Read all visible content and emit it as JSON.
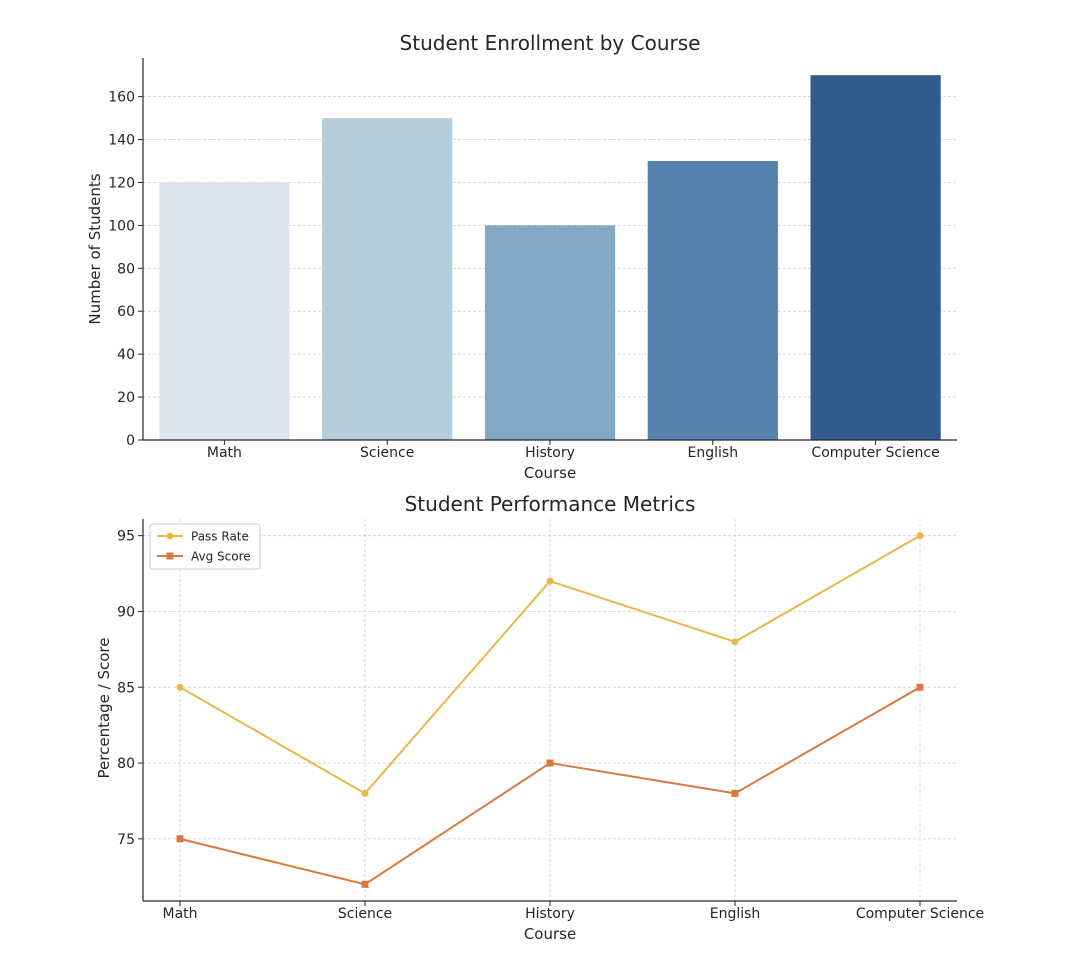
{
  "chart_data": [
    {
      "type": "bar",
      "title": "Student Enrollment by Course",
      "xlabel": "Course",
      "ylabel": "Number of Students",
      "categories": [
        "Math",
        "Science",
        "History",
        "English",
        "Computer Science"
      ],
      "values": [
        120,
        150,
        100,
        130,
        170
      ],
      "colors": [
        "#dde5f0",
        "#b6cddb",
        "#82a8c5",
        "#5583ad",
        "#315b8c"
      ],
      "ylim": [
        0,
        178
      ],
      "yticks": [
        0,
        20,
        40,
        60,
        80,
        100,
        120,
        140,
        160
      ],
      "grid": true
    },
    {
      "type": "line",
      "title": "Student Performance Metrics",
      "xlabel": "Course",
      "ylabel": "Percentage / Score",
      "categories": [
        "Math",
        "Science",
        "History",
        "English",
        "Computer Science"
      ],
      "series": [
        {
          "name": "Pass Rate",
          "values": [
            85,
            78,
            92,
            88,
            95
          ],
          "color": "#e8b84a",
          "marker": "circle"
        },
        {
          "name": "Avg Score",
          "values": [
            75,
            72,
            80,
            78,
            85
          ],
          "color": "#d97a3e",
          "marker": "square"
        }
      ],
      "ylim": [
        70.9,
        96.1
      ],
      "yticks": [
        75,
        80,
        85,
        90,
        95
      ],
      "grid": true,
      "legend_position": "top-left"
    }
  ]
}
